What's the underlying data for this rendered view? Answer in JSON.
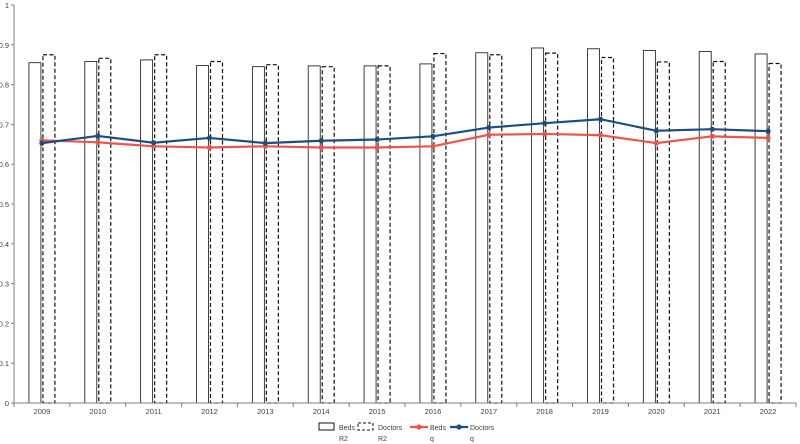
{
  "chart_data": {
    "type": "bar",
    "categories": [
      "2009",
      "2010",
      "2011",
      "2012",
      "2013",
      "2014",
      "2015",
      "2016",
      "2017",
      "2018",
      "2019",
      "2020",
      "2021",
      "2022"
    ],
    "ylim": [
      0,
      1
    ],
    "yticks": [
      "0",
      "0.1",
      "0.2",
      "0.3",
      "0.4",
      "0.5",
      "0.6",
      "0.7",
      "0.8",
      "0.9",
      "1"
    ],
    "grid": false,
    "legend_position": "bottom-center",
    "bar_series": [
      {
        "name": "Beds",
        "sublabel": "R2",
        "style": "solid-outline",
        "values": [
          0.855,
          0.858,
          0.862,
          0.848,
          0.845,
          0.847,
          0.847,
          0.852,
          0.88,
          0.892,
          0.89,
          0.886,
          0.883,
          0.877
        ]
      },
      {
        "name": "Doctors",
        "sublabel": "R2",
        "style": "dashed-outline",
        "values": [
          0.875,
          0.866,
          0.875,
          0.858,
          0.85,
          0.845,
          0.847,
          0.878,
          0.875,
          0.879,
          0.868,
          0.857,
          0.858,
          0.853
        ]
      }
    ],
    "line_series": [
      {
        "name": "Beds",
        "sublabel": "q",
        "color": "#e8574b",
        "values": [
          0.66,
          0.655,
          0.645,
          0.642,
          0.645,
          0.642,
          0.642,
          0.645,
          0.674,
          0.676,
          0.673,
          0.653,
          0.67,
          0.666
        ]
      },
      {
        "name": "Doctors",
        "sublabel": "q",
        "color": "#1c4e80",
        "values": [
          0.653,
          0.671,
          0.654,
          0.666,
          0.653,
          0.659,
          0.662,
          0.67,
          0.692,
          0.703,
          0.713,
          0.684,
          0.688,
          0.683
        ]
      }
    ]
  }
}
